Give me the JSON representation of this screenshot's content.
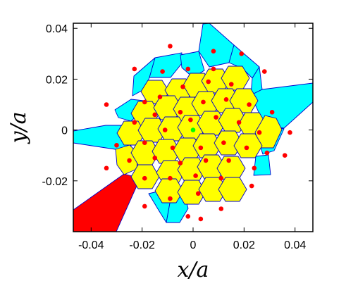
{
  "chart_data": {
    "type": "scatter",
    "xlabel": "x/a",
    "ylabel": "y/a",
    "xlim": [
      -0.047,
      0.047
    ],
    "ylim": [
      -0.04,
      0.042
    ],
    "xticks": [
      -0.04,
      -0.02,
      0,
      0.02,
      0.04
    ],
    "xtick_labels": [
      "-0.04",
      "-0.02",
      "0",
      "0.02",
      "0.04"
    ],
    "yticks": [
      -0.02,
      0,
      0.02,
      0.04
    ],
    "ytick_labels": [
      "-0.02",
      "0",
      "0.02",
      "0.04"
    ],
    "grid": false,
    "colors": {
      "points": "#ff0000",
      "center_point": "#00ff00",
      "inner_cells": "#ffff00",
      "outer_cells": "#00ffff",
      "open_cell": "#ff0000",
      "cell_edges": "#0000cc"
    },
    "center_point": [
      0,
      0
    ],
    "points": [
      [
        -0.009,
        0.033
      ],
      [
        0.008,
        0.031
      ],
      [
        0.019,
        0.03
      ],
      [
        -0.023,
        0.024
      ],
      [
        -0.012,
        0.023
      ],
      [
        -0.002,
        0.024
      ],
      [
        0.008,
        0.024
      ],
      [
        0.028,
        0.023
      ],
      [
        -0.013,
        0.013
      ],
      [
        -0.004,
        0.017
      ],
      [
        0.006,
        0.019
      ],
      [
        0.015,
        0.018
      ],
      [
        -0.019,
        0.011
      ],
      [
        0.022,
        0.01
      ],
      [
        -0.034,
        0.01
      ],
      [
        -0.023,
        0.003
      ],
      [
        -0.015,
        0.006
      ],
      [
        -0.005,
        0.007
      ],
      [
        0.004,
        0.011
      ],
      [
        0.013,
        0.012
      ],
      [
        0.031,
        0.007
      ],
      [
        -0.011,
        0.0
      ],
      [
        -0.001,
        0.004
      ],
      [
        0.009,
        0.005
      ],
      [
        0.018,
        0.003
      ],
      [
        0.026,
        -0.001
      ],
      [
        -0.03,
        -0.006
      ],
      [
        -0.019,
        -0.005
      ],
      [
        -0.008,
        -0.007
      ],
      [
        0.003,
        -0.007
      ],
      [
        0.012,
        -0.005
      ],
      [
        0.021,
        -0.007
      ],
      [
        0.029,
        -0.009
      ],
      [
        0.038,
        -0.001
      ],
      [
        -0.034,
        -0.015
      ],
      [
        -0.025,
        -0.012
      ],
      [
        -0.015,
        -0.011
      ],
      [
        -0.005,
        -0.013
      ],
      [
        0.005,
        -0.012
      ],
      [
        0.014,
        -0.012
      ],
      [
        0.024,
        -0.015
      ],
      [
        -0.019,
        -0.019
      ],
      [
        -0.009,
        -0.019
      ],
      [
        0.001,
        -0.018
      ],
      [
        0.011,
        -0.019
      ],
      [
        0.036,
        -0.01
      ],
      [
        0.023,
        -0.022
      ],
      [
        -0.009,
        -0.027
      ],
      [
        0.002,
        -0.025
      ],
      [
        -0.019,
        -0.03
      ],
      [
        0.011,
        -0.031
      ],
      [
        -0.002,
        -0.034
      ],
      [
        0.003,
        -0.035
      ]
    ]
  }
}
